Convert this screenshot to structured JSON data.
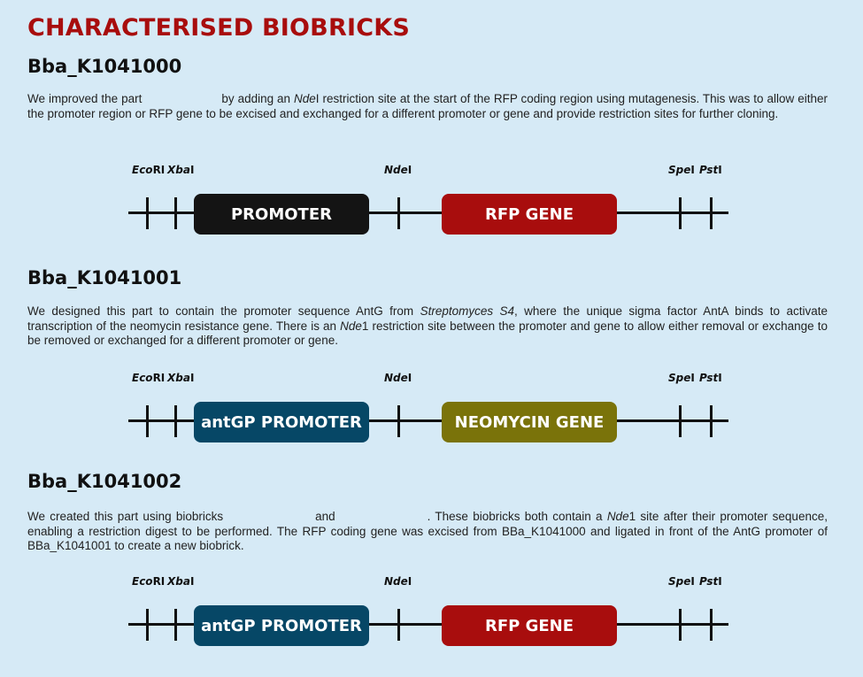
{
  "page_title": "CHARACTERISED BIOBRICKS",
  "colors": {
    "background": "#d6eaf6",
    "title": "#a80d0d",
    "promoter_black": "#141414",
    "rfp_red": "#a80d0d",
    "antgp_blue": "#064766",
    "neomycin_olive": "#7a730a"
  },
  "sites": {
    "ecori_it": "Eco",
    "ecori_rest": "RI",
    "xbai_it": "Xba",
    "xbai_rest": "I",
    "ndei_it": "Nde",
    "ndei_rest": "I",
    "spei_it": "Spe",
    "spei_rest": "I",
    "psti_it": "Pst",
    "psti_rest": "I"
  },
  "sections": [
    {
      "title": "Bba_K1041000",
      "text_1": "We improved the part",
      "text_2": "by adding an",
      "text_nde": "Nde",
      "text_3": "I restriction site at the start of the RFP coding region using mutagenesis. This was to allow either the promoter region or RFP gene to be excised and exchanged for a different promoter or gene and provide restriction sites for further cloning.",
      "box_left": "PROMOTER",
      "box_right": "RFP GENE"
    },
    {
      "title": "Bba_K1041001",
      "text_1": "We designed this part to contain the promoter sequence AntG from",
      "text_species": "Streptomyces S4",
      "text_2": ", where the unique sigma factor AntA binds to activate transcription of the neomycin resistance gene. There is an",
      "text_nde": "Nde",
      "text_3": "1 restriction site between the promoter and gene to allow either removal or exchange to be removed or exchanged for a different promoter or gene.",
      "box_left": "antGP PROMOTER",
      "box_right": "NEOMYCIN GENE"
    },
    {
      "title": "Bba_K1041002",
      "text_1": "We created this part using biobricks",
      "text_and": "and",
      "text_2": ". These biobricks both contain a",
      "text_nde": "Nde",
      "text_3": "1 site after their promoter sequence, enabling a restriction digest to be performed. The RFP coding gene was excised from BBa_K1041000 and ligated in front of the AntG promoter of BBa_K1041001 to create a new biobrick.",
      "box_left": "antGP PROMOTER",
      "box_right": "RFP GENE"
    }
  ]
}
